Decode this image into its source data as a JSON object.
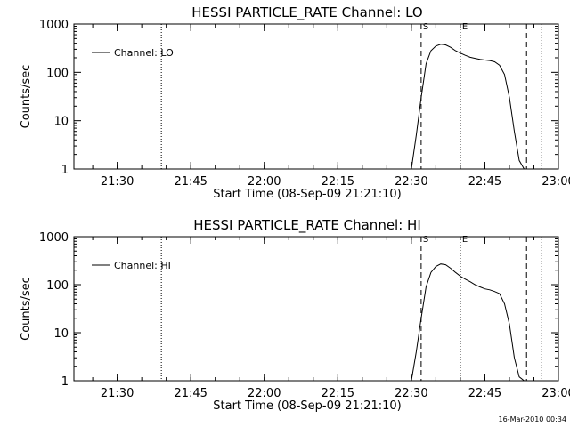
{
  "chart_data": [
    {
      "type": "line",
      "title": "HESSI PARTICLE_RATE Channel: LO",
      "xlabel": "Start Time (08-Sep-09 21:21:10)",
      "ylabel": "Counts/sec",
      "y_scale": "log",
      "ylim": [
        1,
        1000
      ],
      "xlim": [
        "21:21:10",
        "23:00:00"
      ],
      "x_ticks": [
        "21:30",
        "21:45",
        "22:00",
        "22:15",
        "22:30",
        "22:45",
        "23:00"
      ],
      "y_ticks": [
        "1",
        "10",
        "100",
        "1000"
      ],
      "legend": {
        "position": "top-left",
        "entries": [
          "Channel: LO"
        ]
      },
      "grid": false,
      "series": [
        {
          "name": "Channel: LO",
          "x": [
            "22:30:00",
            "22:31:00",
            "22:32:00",
            "22:33:00",
            "22:34:00",
            "22:35:00",
            "22:36:00",
            "22:37:00",
            "22:38:00",
            "22:39:00",
            "22:40:00",
            "22:41:00",
            "22:42:00",
            "22:43:00",
            "22:44:00",
            "22:45:00",
            "22:46:00",
            "22:47:00",
            "22:48:00",
            "22:49:00",
            "22:50:00",
            "22:51:00",
            "22:52:00",
            "22:53:00"
          ],
          "y": [
            1,
            5,
            30,
            150,
            280,
            350,
            380,
            370,
            330,
            280,
            250,
            225,
            205,
            195,
            185,
            180,
            175,
            165,
            140,
            90,
            30,
            6,
            1.5,
            1
          ]
        }
      ],
      "markers": [
        {
          "label": "S",
          "time": "22:32:00",
          "style": "dashed"
        },
        {
          "label": "E",
          "time": "22:40:00",
          "style": "dotted"
        },
        {
          "label": "",
          "time": "21:39:00",
          "style": "dotted"
        },
        {
          "label": "",
          "time": "22:53:30",
          "style": "dashed"
        },
        {
          "label": "",
          "time": "22:56:30",
          "style": "dotted"
        }
      ]
    },
    {
      "type": "line",
      "title": "HESSI PARTICLE_RATE Channel: HI",
      "xlabel": "Start Time (08-Sep-09 21:21:10)",
      "ylabel": "Counts/sec",
      "y_scale": "log",
      "ylim": [
        1,
        1000
      ],
      "xlim": [
        "21:21:10",
        "23:00:00"
      ],
      "x_ticks": [
        "21:30",
        "21:45",
        "22:00",
        "22:15",
        "22:30",
        "22:45",
        "23:00"
      ],
      "y_ticks": [
        "1",
        "10",
        "100",
        "1000"
      ],
      "legend": {
        "position": "top-left",
        "entries": [
          "Channel: HI"
        ]
      },
      "grid": false,
      "series": [
        {
          "name": "Channel: HI",
          "x": [
            "22:30:00",
            "22:31:00",
            "22:32:00",
            "22:33:00",
            "22:34:00",
            "22:35:00",
            "22:36:00",
            "22:37:00",
            "22:38:00",
            "22:39:00",
            "22:40:00",
            "22:41:00",
            "22:42:00",
            "22:43:00",
            "22:44:00",
            "22:45:00",
            "22:46:00",
            "22:47:00",
            "22:48:00",
            "22:49:00",
            "22:50:00",
            "22:51:00",
            "22:52:00",
            "22:53:00"
          ],
          "y": [
            1,
            4,
            20,
            90,
            180,
            240,
            270,
            260,
            220,
            180,
            150,
            130,
            115,
            100,
            90,
            82,
            78,
            72,
            65,
            40,
            15,
            3,
            1.2,
            1
          ]
        }
      ],
      "markers": [
        {
          "label": "S",
          "time": "22:32:00",
          "style": "dashed"
        },
        {
          "label": "E",
          "time": "22:40:00",
          "style": "dotted"
        },
        {
          "label": "",
          "time": "21:39:00",
          "style": "dotted"
        },
        {
          "label": "",
          "time": "22:53:30",
          "style": "dashed"
        },
        {
          "label": "",
          "time": "22:56:30",
          "style": "dotted"
        }
      ]
    }
  ],
  "footer": {
    "timestamp": "16-Mar-2010 00:34"
  }
}
